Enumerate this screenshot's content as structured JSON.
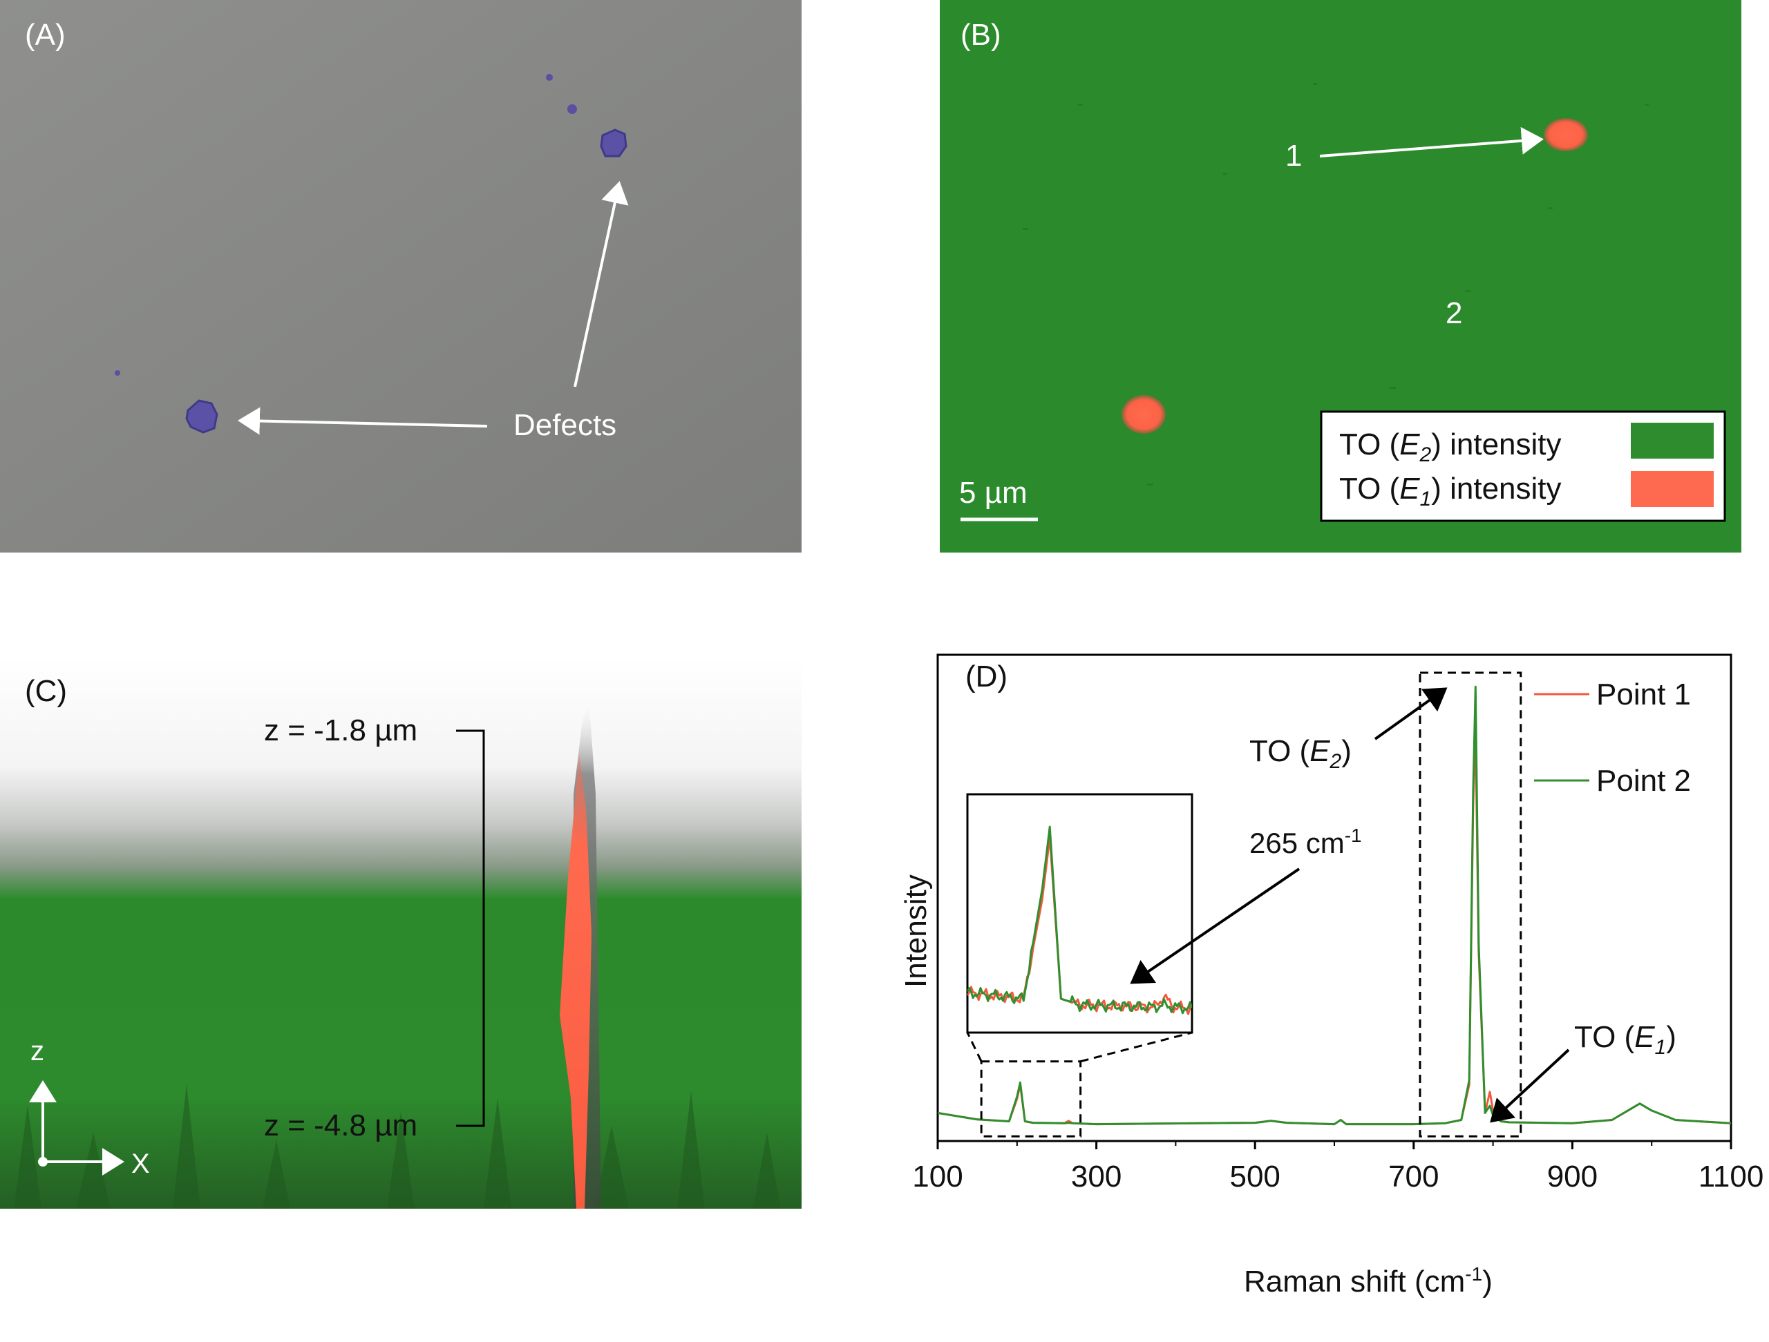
{
  "panel_a": {
    "label": "(A)",
    "defects_label": "Defects"
  },
  "panel_b": {
    "label": "(B)",
    "point1_label": "1",
    "point2_label": "2",
    "scale_bar_label": "5 µm",
    "legend": [
      {
        "prefix": "TO (",
        "mode": "E",
        "sub": "2",
        "suffix": ") intensity",
        "color": "#2e8b2e"
      },
      {
        "prefix": "TO (",
        "mode": "E",
        "sub": "1",
        "suffix": ") intensity",
        "color": "#fd6a4f"
      }
    ]
  },
  "panel_c": {
    "label": "(C)",
    "z_top_label": "z = -1.8 µm",
    "z_bottom_label": "z = -4.8 µm",
    "axis_z": "z",
    "axis_x": "X"
  },
  "chart_data": {
    "type": "line",
    "panel_label": "(D)",
    "xlabel": "Raman shift (cm",
    "xlabel_sup": "-1",
    "xlabel_end": ")",
    "ylabel": "Intensity",
    "xlim": [
      100,
      1100
    ],
    "ylim": [
      0,
      100
    ],
    "xticks": [
      "100",
      "300",
      "500",
      "700",
      "900",
      "1100"
    ],
    "yticks_shown": false,
    "legend_placement": "top-right",
    "series": [
      {
        "name": "Point 1",
        "color": "#f05a3c",
        "x": [
          100,
          150,
          190,
          200,
          204,
          210,
          220,
          260,
          265,
          270,
          300,
          500,
          520,
          540,
          600,
          608,
          615,
          700,
          740,
          760,
          770,
          775,
          778,
          782,
          790,
          796,
          800,
          810,
          820,
          900,
          950,
          970,
          985,
          1000,
          1030,
          1100
        ],
        "y": [
          6.0,
          4.6,
          4.2,
          9.0,
          12.0,
          4.2,
          3.9,
          3.8,
          4.3,
          3.8,
          3.6,
          3.9,
          4.3,
          3.9,
          3.6,
          4.5,
          3.6,
          3.6,
          3.8,
          4.5,
          12.0,
          72.0,
          88.0,
          40.0,
          6.0,
          10.5,
          6.5,
          4.2,
          4.0,
          3.8,
          4.5,
          6.5,
          8.0,
          6.5,
          4.5,
          3.8
        ]
      },
      {
        "name": "Point 2",
        "color": "#2f8f2f",
        "x": [
          100,
          150,
          190,
          200,
          204,
          210,
          220,
          260,
          265,
          270,
          300,
          500,
          520,
          540,
          600,
          608,
          615,
          700,
          740,
          760,
          770,
          775,
          778,
          782,
          790,
          796,
          800,
          810,
          820,
          900,
          950,
          970,
          985,
          1000,
          1030,
          1100
        ],
        "y": [
          6.0,
          4.6,
          4.2,
          9.5,
          12.5,
          4.2,
          3.9,
          3.8,
          3.9,
          3.8,
          3.6,
          3.9,
          4.3,
          3.9,
          3.6,
          4.5,
          3.6,
          3.6,
          3.8,
          4.5,
          13.0,
          75.0,
          97.0,
          42.0,
          6.0,
          7.5,
          5.5,
          4.2,
          4.0,
          3.8,
          4.5,
          6.5,
          8.0,
          6.5,
          4.5,
          3.8
        ]
      }
    ],
    "annotations": {
      "to_e2_prefix": "TO (",
      "to_e2_mode": "E",
      "to_e2_sub": "2",
      "to_e2_suffix": ")",
      "to_e1_prefix": "TO (",
      "to_e1_mode": "E",
      "to_e1_sub": "1",
      "to_e1_suffix": ")",
      "inset_peak_text": "265 cm",
      "inset_peak_sup": "-1"
    },
    "inset": {
      "xlim": [
        160,
        280
      ],
      "note": ""
    }
  }
}
